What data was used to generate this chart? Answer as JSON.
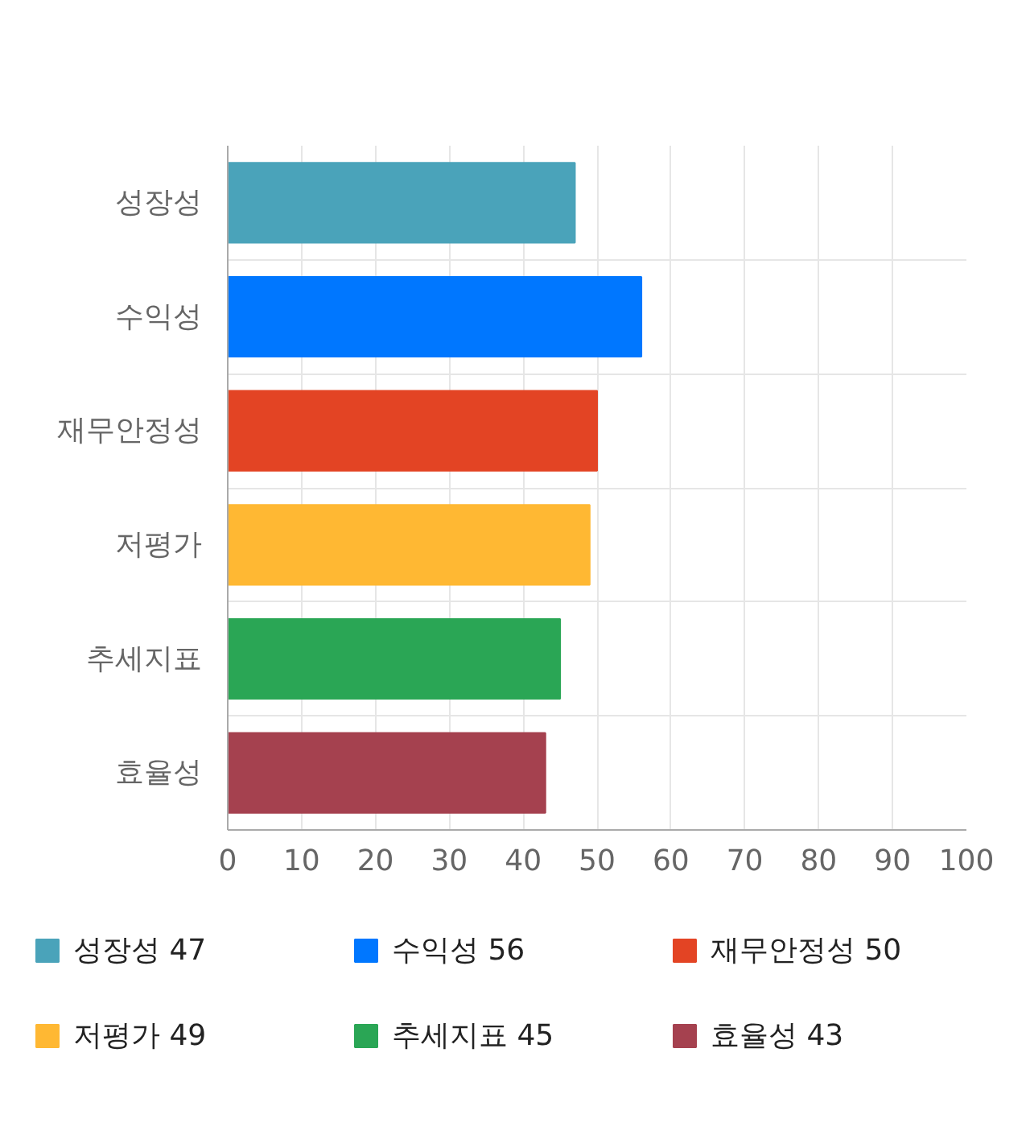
{
  "chart_data": {
    "type": "bar",
    "orientation": "horizontal",
    "categories": [
      "성장성",
      "수익성",
      "재무안정성",
      "저평가",
      "추세지표",
      "효율성"
    ],
    "series": [
      {
        "name": "성장성 47",
        "color": "#4aa3ba",
        "values": [
          47,
          null,
          null,
          null,
          null,
          null
        ]
      },
      {
        "name": "수익성 56",
        "color": "#0077ff",
        "values": [
          null,
          56,
          null,
          null,
          null,
          null
        ]
      },
      {
        "name": "재무안정성 50",
        "color": "#e34424",
        "values": [
          null,
          null,
          50,
          null,
          null,
          null
        ]
      },
      {
        "name": "저평가 49",
        "color": "#ffb833",
        "values": [
          null,
          null,
          null,
          49,
          null,
          null
        ]
      },
      {
        "name": "추세지표 45",
        "color": "#2aa655",
        "values": [
          null,
          null,
          null,
          null,
          45,
          null
        ]
      },
      {
        "name": "효율성 43",
        "color": "#a5414f",
        "values": [
          null,
          null,
          null,
          null,
          null,
          43
        ]
      }
    ],
    "xlim": [
      0,
      100
    ],
    "xticks": [
      0,
      10,
      20,
      30,
      40,
      50,
      60,
      70,
      80,
      90,
      100
    ],
    "grid": true,
    "legend": "bottom"
  }
}
